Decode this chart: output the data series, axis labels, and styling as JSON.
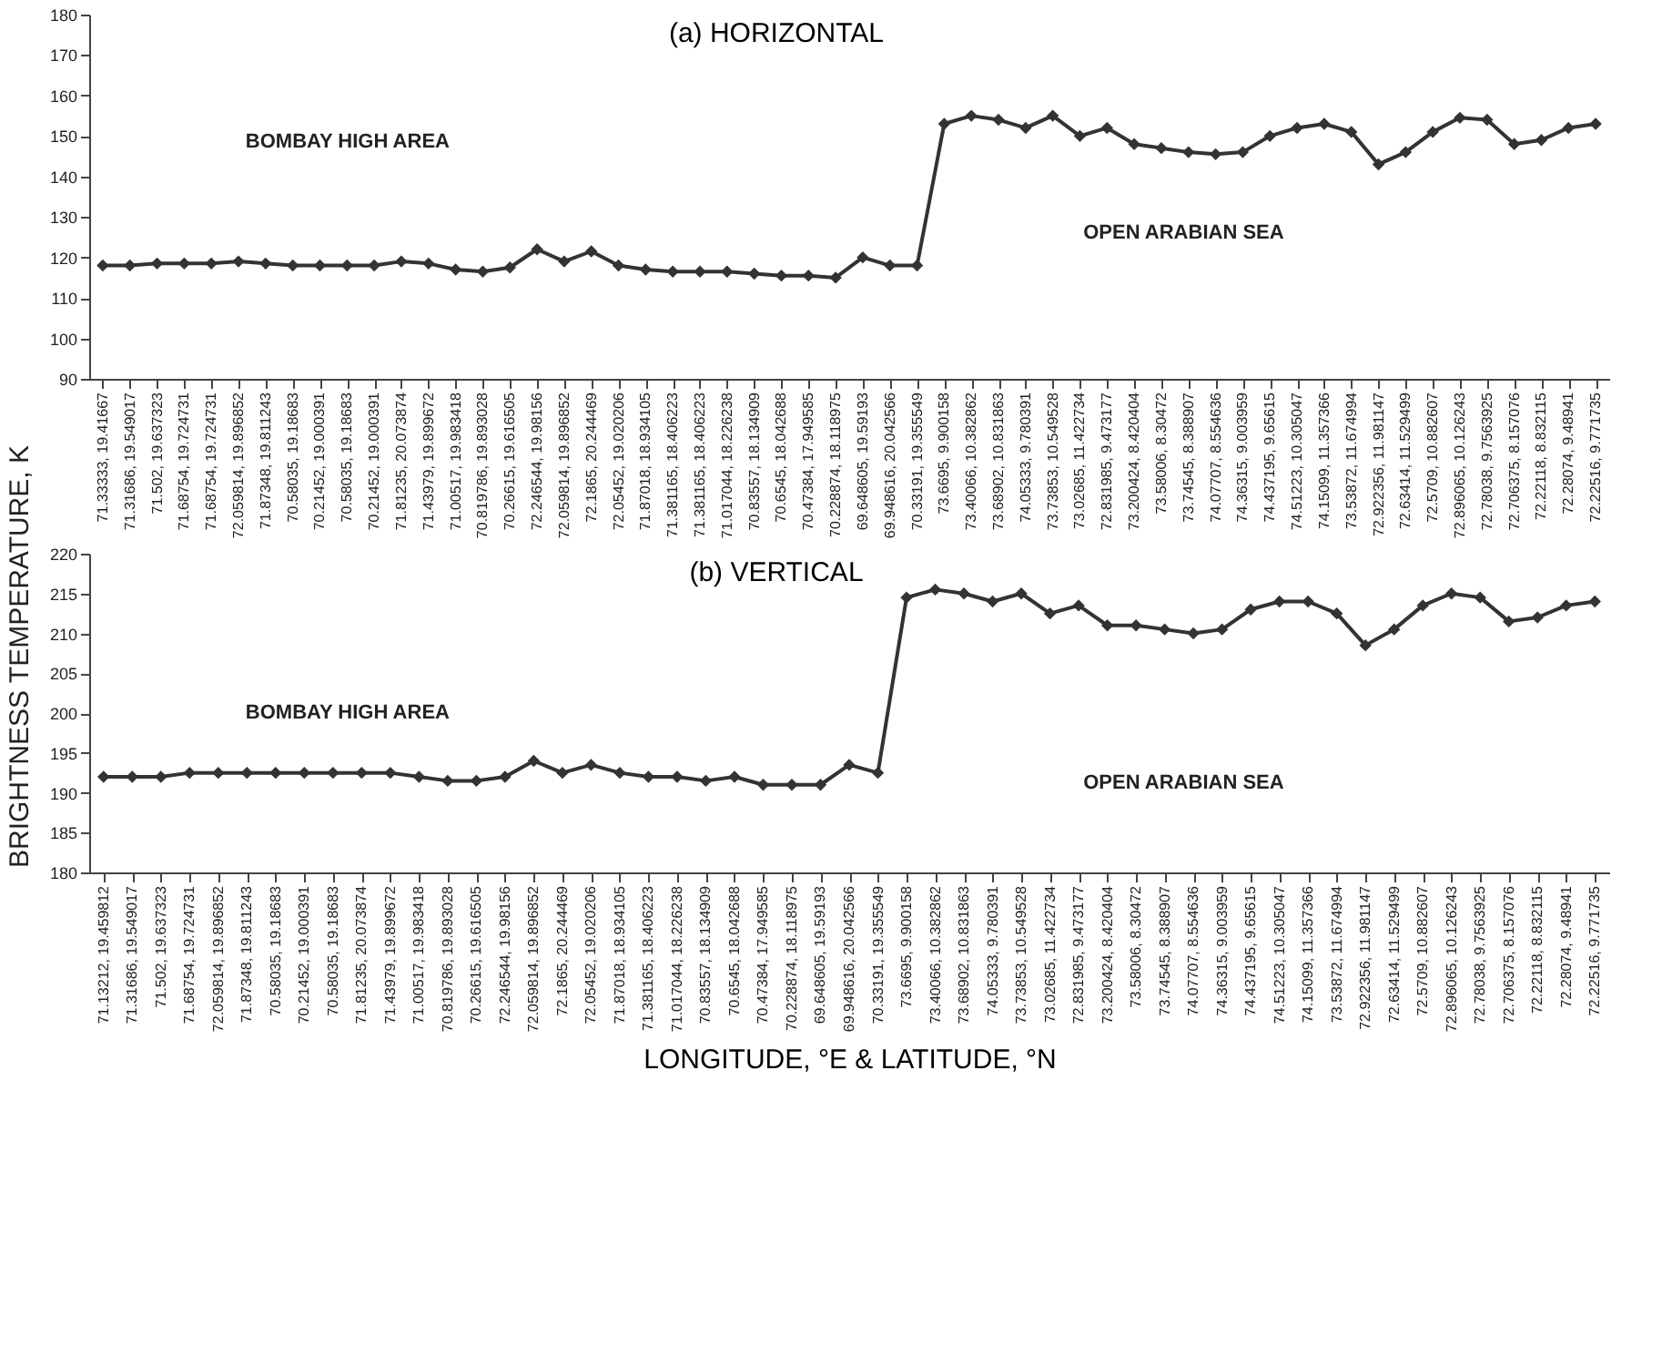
{
  "chart_data": [
    {
      "type": "line",
      "title": "(a) HORIZONTAL",
      "ylabel": "BRIGHTNESS TEMPERATURE, K",
      "categories": [
        "71.33333, 19.41667",
        "71.31686, 19.549017",
        "71.502, 19.637323",
        "71.68754, 19.724731",
        "71.68754, 19.724731",
        "72.059814, 19.896852",
        "71.87348, 19.811243",
        "70.58035, 19.18683",
        "70.21452, 19.000391",
        "70.58035, 19.18683",
        "70.21452, 19.000391",
        "71.81235, 20.073874",
        "71.43979, 19.899672",
        "71.00517, 19.983418",
        "70.819786, 19.893028",
        "70.26615, 19.616505",
        "72.246544, 19.98156",
        "72.059814, 19.896852",
        "72.1865, 20.244469",
        "72.05452, 19.020206",
        "71.87018, 18.934105",
        "71.381165, 18.406223",
        "71.381165, 18.406223",
        "71.017044, 18.226238",
        "70.83557, 18.134909",
        "70.6545, 18.042688",
        "70.47384, 17.949585",
        "70.228874, 18.118975",
        "69.648605, 19.59193",
        "69.948616, 20.042566",
        "70.33191, 19.355549",
        "73.6695, 9.900158",
        "73.40066, 10.382862",
        "73.68902, 10.831863",
        "74.05333, 9.780391",
        "73.73853, 10.549528",
        "73.02685, 11.422734",
        "72.831985, 9.473177",
        "73.200424, 8.420404",
        "73.58006, 8.30472",
        "73.74545, 8.388907",
        "74.07707, 8.554636",
        "74.36315, 9.003959",
        "74.437195, 9.65615",
        "74.51223, 10.305047",
        "74.15099, 11.357366",
        "73.53872, 11.674994",
        "72.922356, 11.981147",
        "72.63414, 11.529499",
        "72.5709, 10.882607",
        "72.896065, 10.126243",
        "72.78038, 9.7563925",
        "72.706375, 8.157076",
        "72.22118, 8.832115",
        "72.28074, 9.48941",
        "72.22516, 9.771735"
      ],
      "values": [
        118,
        118,
        118.5,
        118.5,
        118.5,
        119,
        118.5,
        118,
        118,
        118,
        118,
        119,
        118.5,
        117,
        116.5,
        117.5,
        122,
        119,
        121.5,
        118,
        117,
        116.5,
        116.5,
        116.5,
        116,
        115.5,
        115.5,
        115,
        120,
        118,
        118,
        153,
        155,
        154,
        152,
        155,
        150,
        152,
        148,
        147,
        146,
        145.5,
        146,
        150,
        152,
        153,
        151,
        143,
        146,
        151,
        154.5,
        154,
        148,
        149,
        152,
        153
      ],
      "color": "#333333",
      "marker": "diamond",
      "ylim": [
        90,
        180
      ],
      "yticks": [
        90,
        100,
        110,
        120,
        130,
        140,
        150,
        160,
        170,
        180
      ],
      "annotations": [
        "BOMBAY HIGH AREA",
        "OPEN ARABIAN SEA"
      ]
    },
    {
      "type": "line",
      "title": "(b) VERTICAL",
      "xlabel": "LONGITUDE, °E & LATITUDE, °N",
      "categories": [
        "71.13212, 19.459812",
        "71.31686, 19.549017",
        "71.502, 19.637323",
        "71.68754, 19.724731",
        "72.059814, 19.896852",
        "71.87348, 19.811243",
        "70.58035, 19.18683",
        "70.21452, 19.000391",
        "70.58035, 19.18683",
        "71.81235, 20.073874",
        "71.43979, 19.899672",
        "71.00517, 19.983418",
        "70.819786, 19.893028",
        "70.26615, 19.616505",
        "72.246544, 19.98156",
        "72.059814, 19.896852",
        "72.1865, 20.244469",
        "72.05452, 19.020206",
        "71.87018, 18.934105",
        "71.381165, 18.406223",
        "71.017044, 18.226238",
        "70.83557, 18.134909",
        "70.6545, 18.042688",
        "70.47384, 17.949585",
        "70.228874, 18.118975",
        "69.648605, 19.59193",
        "69.948616, 20.042566",
        "70.33191, 19.355549",
        "73.6695, 9.900158",
        "73.40066, 10.382862",
        "73.68902, 10.831863",
        "74.05333, 9.780391",
        "73.73853, 10.549528",
        "73.02685, 11.422734",
        "72.831985, 9.473177",
        "73.200424, 8.420404",
        "73.58006, 8.30472",
        "73.74545, 8.388907",
        "74.07707, 8.554636",
        "74.36315, 9.003959",
        "74.437195, 9.65615",
        "74.51223, 10.305047",
        "74.15099, 11.357366",
        "73.53872, 11.674994",
        "72.922356, 11.981147",
        "72.63414, 11.529499",
        "72.5709, 10.882607",
        "72.896065, 10.126243",
        "72.78038, 9.7563925",
        "72.706375, 8.157076",
        "72.22118, 8.832115",
        "72.28074, 9.48941",
        "72.22516, 9.771735"
      ],
      "values": [
        192,
        192,
        192,
        192.5,
        192.5,
        192.5,
        192.5,
        192.5,
        192.5,
        192.5,
        192.5,
        192,
        191.5,
        191.5,
        192,
        194,
        192.5,
        193.5,
        192.5,
        192,
        192,
        191.5,
        192,
        191,
        191,
        191,
        193.5,
        192.5,
        214.5,
        215.5,
        215,
        214,
        215,
        212.5,
        213.5,
        211,
        211,
        210.5,
        210,
        210.5,
        213,
        214,
        214,
        212.5,
        208.5,
        210.5,
        213.5,
        215,
        214.5,
        211.5,
        212,
        213.5,
        214
      ],
      "color": "#333333",
      "marker": "diamond",
      "ylim": [
        180,
        220
      ],
      "yticks": [
        180,
        185,
        190,
        195,
        200,
        205,
        210,
        215,
        220
      ],
      "annotations": [
        "BOMBAY HIGH AREA",
        "OPEN ARABIAN SEA"
      ]
    }
  ]
}
